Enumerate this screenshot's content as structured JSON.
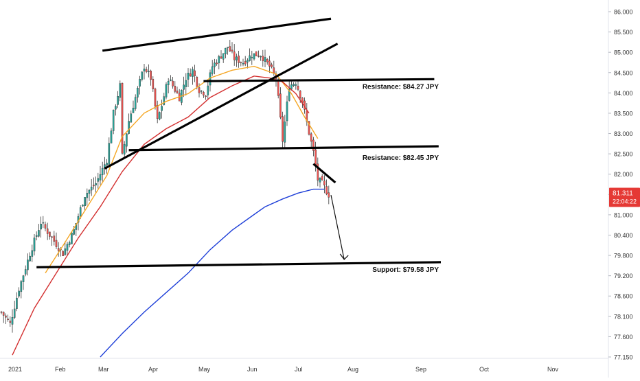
{
  "chart_data": {
    "type": "candlestick",
    "symbol_price": "81.311",
    "countdown": "22:04:22",
    "colors": {
      "up": "#26a69a",
      "down": "#ef5350",
      "ma_fast": "#f5a623",
      "ma_mid": "#d32f2f",
      "ma_slow": "#1e3fd8",
      "trendline": "#000000",
      "price_tag": "#e53935"
    },
    "y_axis": {
      "ticks": [
        "86.000",
        "85.500",
        "85.000",
        "84.500",
        "84.000",
        "83.500",
        "83.000",
        "82.500",
        "82.000",
        "81.500",
        "81.000",
        "80.400",
        "79.800",
        "79.200",
        "78.600",
        "78.100",
        "77.600",
        "77.150"
      ],
      "range": [
        77.15,
        86.0
      ]
    },
    "x_axis": {
      "ticks": [
        "2021",
        "Feb",
        "Mar",
        "Apr",
        "May",
        "Jun",
        "Jul",
        "Aug",
        "Sep",
        "Oct",
        "Nov"
      ]
    },
    "annotations": [
      {
        "text": "Resistance: $84.27 JPY",
        "value": 84.27
      },
      {
        "text": "Resistance: $82.45 JPY",
        "value": 82.45
      },
      {
        "text": "Support: $79.58 JPY",
        "value": 79.58
      }
    ],
    "price_path": [
      [
        0,
        78.3
      ],
      [
        4,
        78.0
      ],
      [
        8,
        78.9
      ],
      [
        13,
        79.8
      ],
      [
        18,
        80.6
      ],
      [
        23,
        80.2
      ],
      [
        28,
        79.8
      ],
      [
        33,
        80.4
      ],
      [
        38,
        81.3
      ],
      [
        43,
        81.6
      ],
      [
        48,
        82.2
      ],
      [
        51,
        83.4
      ],
      [
        54,
        84.1
      ],
      [
        55,
        82.3
      ],
      [
        58,
        83.2
      ],
      [
        62,
        84.0
      ],
      [
        65,
        84.6
      ],
      [
        68,
        84.3
      ],
      [
        71,
        83.2
      ],
      [
        73,
        83.6
      ],
      [
        76,
        84.3
      ],
      [
        79,
        84.0
      ],
      [
        81,
        83.8
      ],
      [
        84,
        84.3
      ],
      [
        87,
        84.5
      ],
      [
        90,
        84.0
      ],
      [
        93,
        83.9
      ],
      [
        96,
        84.6
      ],
      [
        99,
        84.8
      ],
      [
        103,
        85.1
      ],
      [
        106,
        84.8
      ],
      [
        110,
        84.7
      ],
      [
        114,
        84.9
      ],
      [
        118,
        84.9
      ],
      [
        122,
        84.6
      ],
      [
        125,
        84.3
      ],
      [
        128,
        82.7
      ],
      [
        131,
        84.1
      ],
      [
        134,
        84.2
      ],
      [
        137,
        83.7
      ],
      [
        140,
        82.9
      ],
      [
        142,
        82.4
      ],
      [
        144,
        81.7
      ],
      [
        146,
        81.6
      ],
      [
        148,
        81.4
      ],
      [
        149,
        81.311
      ]
    ],
    "moving_averages": [
      {
        "period": "fast",
        "points": [
          [
            20,
            79.3
          ],
          [
            28,
            80.0
          ],
          [
            38,
            80.9
          ],
          [
            48,
            81.8
          ],
          [
            55,
            82.8
          ],
          [
            65,
            83.4
          ],
          [
            75,
            83.7
          ],
          [
            85,
            83.9
          ],
          [
            95,
            84.3
          ],
          [
            105,
            84.5
          ],
          [
            115,
            84.6
          ],
          [
            125,
            84.4
          ],
          [
            132,
            83.9
          ],
          [
            138,
            83.3
          ],
          [
            144,
            82.75
          ]
        ]
      },
      {
        "period": "mid",
        "points": [
          [
            5,
            77.2
          ],
          [
            15,
            78.4
          ],
          [
            25,
            79.3
          ],
          [
            35,
            80.2
          ],
          [
            45,
            81.0
          ],
          [
            55,
            81.9
          ],
          [
            65,
            82.6
          ],
          [
            75,
            83.0
          ],
          [
            85,
            83.3
          ],
          [
            95,
            83.8
          ],
          [
            105,
            84.1
          ],
          [
            115,
            84.35
          ],
          [
            122,
            84.3
          ],
          [
            128,
            84.2
          ],
          [
            134,
            83.9
          ],
          [
            140,
            83.4
          ]
        ]
      },
      {
        "period": "slow",
        "points": [
          [
            45,
            77.15
          ],
          [
            55,
            77.75
          ],
          [
            65,
            78.3
          ],
          [
            75,
            78.8
          ],
          [
            85,
            79.3
          ],
          [
            95,
            79.9
          ],
          [
            105,
            80.4
          ],
          [
            115,
            80.8
          ],
          [
            120,
            81.0
          ],
          [
            128,
            81.2
          ],
          [
            135,
            81.35
          ],
          [
            142,
            81.45
          ],
          [
            147,
            81.45
          ]
        ]
      }
    ],
    "trendlines": [
      {
        "x0": 46,
        "y0": 85.0,
        "x1": 150,
        "y1": 85.82
      },
      {
        "x0": 47,
        "y0": 81.98,
        "x1": 153,
        "y1": 85.18
      },
      {
        "x0": 92,
        "y0": 84.22,
        "x1": 197,
        "y1": 84.27
      },
      {
        "x0": 58,
        "y0": 82.45,
        "x1": 199,
        "y1": 82.55
      },
      {
        "x0": 16,
        "y0": 79.45,
        "x1": 200,
        "y1": 79.58
      },
      {
        "x0": 142,
        "y0": 82.1,
        "x1": 152,
        "y1": 81.62
      }
    ],
    "projection_arrow": {
      "x0": 150,
      "y0": 81.3,
      "x1": 156,
      "y1": 79.65
    }
  }
}
